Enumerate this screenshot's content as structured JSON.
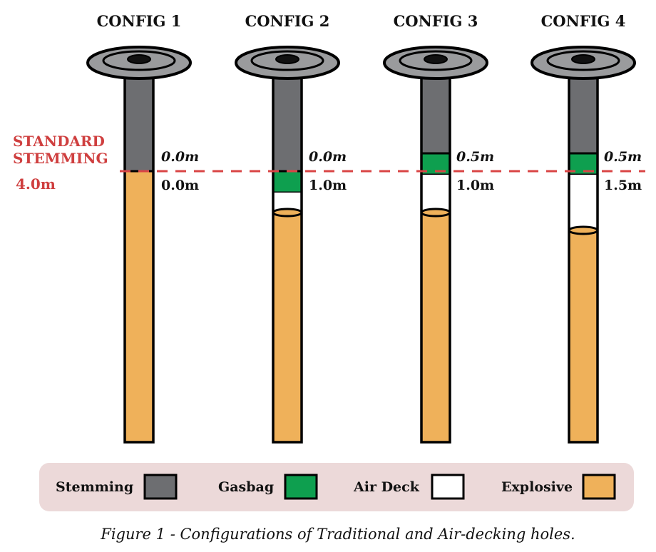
{
  "configs": [
    {
      "title": "CONFIG 1",
      "top_label": "0.0m",
      "bottom_label": "0.0m",
      "gasbag": false,
      "gasbag_length_m": 0.0,
      "air_deck_length_m": 0.0
    },
    {
      "title": "CONFIG 2",
      "top_label": "0.0m",
      "bottom_label": "1.0m",
      "gasbag": true,
      "gasbag_length_m": 0.0,
      "air_deck_length_m": 1.0
    },
    {
      "title": "CONFIG 3",
      "top_label": "0.5m",
      "bottom_label": "1.0m",
      "gasbag": true,
      "gasbag_length_m": 0.5,
      "air_deck_length_m": 1.0
    },
    {
      "title": "CONFIG 4",
      "top_label": "0.5m",
      "bottom_label": "1.5m",
      "gasbag": true,
      "gasbag_length_m": 0.5,
      "air_deck_length_m": 1.5
    }
  ],
  "standard_stemming": {
    "line1": "STANDARD",
    "line2": "STEMMING",
    "depth": "4.0m"
  },
  "legend": [
    {
      "label": "Stemming",
      "color": "#6d6e71"
    },
    {
      "label": "Gasbag",
      "color": "#0e9f4f"
    },
    {
      "label": "Air Deck",
      "color": "#ffffff"
    },
    {
      "label": "Explosive",
      "color": "#efb15a"
    }
  ],
  "colors": {
    "stemming": "#6d6e71",
    "gasbag": "#0e9f4f",
    "air_deck": "#ffffff",
    "explosive": "#efb15a",
    "standard_line": "#d94545",
    "legend_bg": "#ecd9d9",
    "collar": "#9a9b9d"
  },
  "caption": "Figure 1 - Configurations of Traditional and Air-decking holes."
}
